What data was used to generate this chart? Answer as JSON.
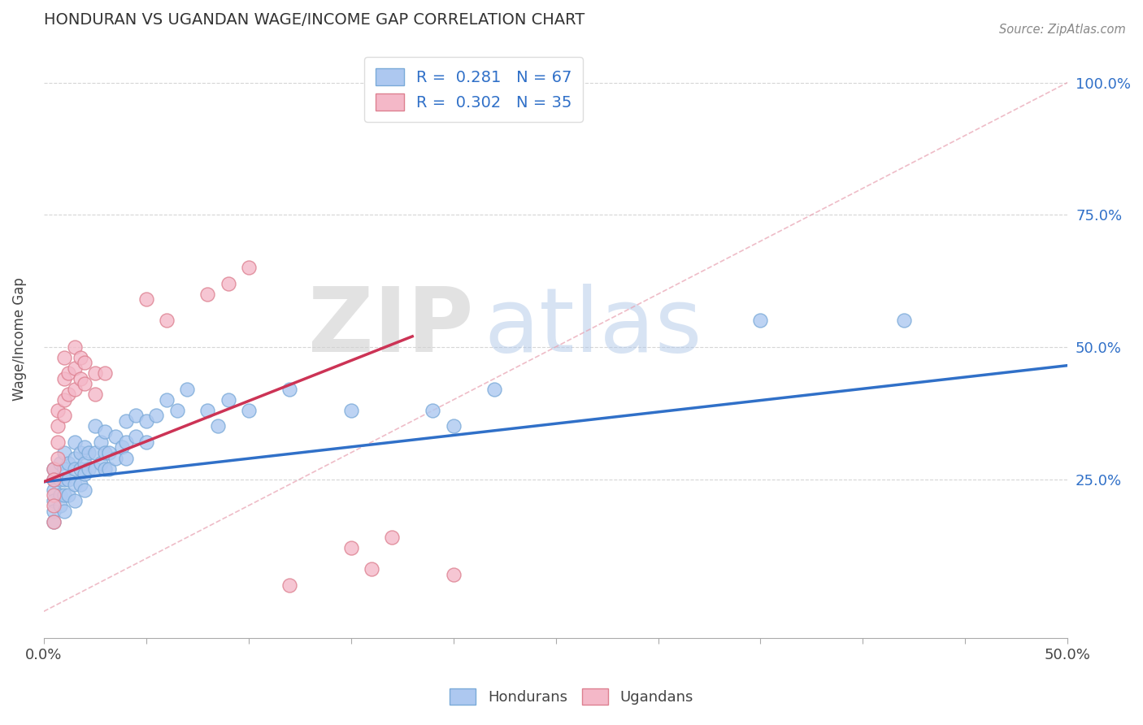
{
  "title": "HONDURAN VS UGANDAN WAGE/INCOME GAP CORRELATION CHART",
  "source_text": "Source: ZipAtlas.com",
  "ylabel": "Wage/Income Gap",
  "xlim": [
    0.0,
    0.5
  ],
  "ylim": [
    -0.05,
    1.08
  ],
  "xtick_vals": [
    0.0,
    0.05,
    0.1,
    0.15,
    0.2,
    0.25,
    0.3,
    0.35,
    0.4,
    0.45,
    0.5
  ],
  "xtick_show": [
    "0.0%",
    "",
    "",
    "",
    "",
    "",
    "",
    "",
    "",
    "",
    "50.0%"
  ],
  "ytick_vals": [
    0.25,
    0.5,
    0.75,
    1.0
  ],
  "ytick_labels": [
    "25.0%",
    "50.0%",
    "75.0%",
    "100.0%"
  ],
  "blue_color": "#adc8f0",
  "blue_edge": "#7aaad8",
  "pink_color": "#f4b8c8",
  "pink_edge": "#dd8090",
  "blue_line_color": "#3070c8",
  "pink_line_color": "#cc3355",
  "diag_line_color": "#cccccc",
  "r_blue": 0.281,
  "n_blue": 67,
  "r_pink": 0.302,
  "n_pink": 35,
  "legend_label_blue": "Hondurans",
  "legend_label_pink": "Ugandans",
  "watermark_zip": "ZIP",
  "watermark_atlas": "atlas",
  "blue_trend_x0": 0.0,
  "blue_trend_y0": 0.245,
  "blue_trend_x1": 0.5,
  "blue_trend_y1": 0.465,
  "pink_trend_x0": 0.0,
  "pink_trend_y0": 0.245,
  "pink_trend_x1": 0.18,
  "pink_trend_y1": 0.52,
  "blue_x": [
    0.005,
    0.005,
    0.005,
    0.005,
    0.005,
    0.005,
    0.008,
    0.008,
    0.008,
    0.008,
    0.01,
    0.01,
    0.01,
    0.01,
    0.01,
    0.012,
    0.012,
    0.012,
    0.015,
    0.015,
    0.015,
    0.015,
    0.015,
    0.018,
    0.018,
    0.018,
    0.02,
    0.02,
    0.02,
    0.02,
    0.022,
    0.022,
    0.025,
    0.025,
    0.025,
    0.028,
    0.028,
    0.03,
    0.03,
    0.03,
    0.032,
    0.032,
    0.035,
    0.035,
    0.038,
    0.04,
    0.04,
    0.04,
    0.045,
    0.045,
    0.05,
    0.05,
    0.055,
    0.06,
    0.065,
    0.07,
    0.08,
    0.085,
    0.09,
    0.1,
    0.12,
    0.15,
    0.19,
    0.2,
    0.22,
    0.35,
    0.42
  ],
  "blue_y": [
    0.27,
    0.25,
    0.23,
    0.21,
    0.19,
    0.17,
    0.28,
    0.25,
    0.22,
    0.2,
    0.3,
    0.27,
    0.25,
    0.22,
    0.19,
    0.28,
    0.25,
    0.22,
    0.32,
    0.29,
    0.27,
    0.24,
    0.21,
    0.3,
    0.27,
    0.24,
    0.31,
    0.28,
    0.26,
    0.23,
    0.3,
    0.27,
    0.35,
    0.3,
    0.27,
    0.32,
    0.28,
    0.34,
    0.3,
    0.27,
    0.3,
    0.27,
    0.33,
    0.29,
    0.31,
    0.36,
    0.32,
    0.29,
    0.37,
    0.33,
    0.36,
    0.32,
    0.37,
    0.4,
    0.38,
    0.42,
    0.38,
    0.35,
    0.4,
    0.38,
    0.42,
    0.38,
    0.38,
    0.35,
    0.42,
    0.55,
    0.55
  ],
  "pink_x": [
    0.005,
    0.005,
    0.005,
    0.005,
    0.005,
    0.007,
    0.007,
    0.007,
    0.007,
    0.01,
    0.01,
    0.01,
    0.01,
    0.012,
    0.012,
    0.015,
    0.015,
    0.015,
    0.018,
    0.018,
    0.02,
    0.02,
    0.025,
    0.025,
    0.03,
    0.05,
    0.06,
    0.08,
    0.09,
    0.1,
    0.12,
    0.15,
    0.16,
    0.17,
    0.2
  ],
  "pink_y": [
    0.27,
    0.25,
    0.22,
    0.2,
    0.17,
    0.38,
    0.35,
    0.32,
    0.29,
    0.48,
    0.44,
    0.4,
    0.37,
    0.45,
    0.41,
    0.5,
    0.46,
    0.42,
    0.48,
    0.44,
    0.47,
    0.43,
    0.45,
    0.41,
    0.45,
    0.59,
    0.55,
    0.6,
    0.62,
    0.65,
    0.05,
    0.12,
    0.08,
    0.14,
    0.07
  ]
}
